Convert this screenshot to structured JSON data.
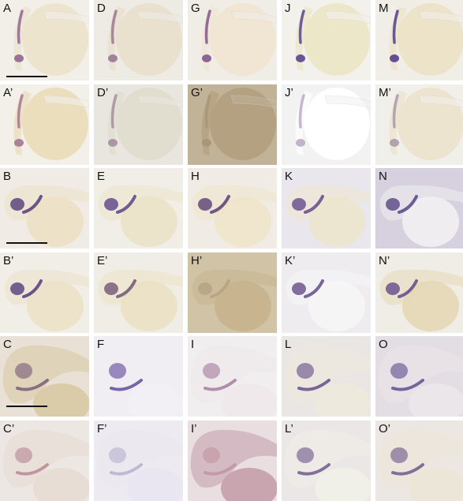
{
  "figure": {
    "panels": [
      {
        "label": "A",
        "bg": "#f2efe9",
        "yolk": "#ece3cc",
        "stain": "#8a5d8e",
        "scale_bar": true
      },
      {
        "label": "D",
        "bg": "#eeebe5",
        "yolk": "#e8e0cc",
        "stain": "#96708f"
      },
      {
        "label": "G",
        "bg": "#f0ece6",
        "yolk": "#efe6d2",
        "stain": "#7c4d86"
      },
      {
        "label": "J",
        "bg": "#f3f1ec",
        "yolk": "#ece6c8",
        "stain": "#4f3a8d"
      },
      {
        "label": "M",
        "bg": "#f1eee8",
        "yolk": "#ebe2c6",
        "stain": "#4c3288"
      },
      {
        "label": "A’",
        "bg": "#f3f0ea",
        "yolk": "#eadcb9",
        "stain": "#a06f8e"
      },
      {
        "label": "D’",
        "bg": "#e8e6df",
        "yolk": "#e0dccd",
        "stain": "#a1899c"
      },
      {
        "label": "G’",
        "bg": "#c1b398",
        "yolk": "#b3a07f",
        "stain": "#a79376"
      },
      {
        "label": "J’",
        "bg": "#f2f2f2",
        "yolk": "#ffffff",
        "stain": "#b8a6c2"
      },
      {
        "label": "M’",
        "bg": "#f1efea",
        "yolk": "#ebe3cc",
        "stain": "#a794a8"
      },
      {
        "label": "B",
        "bg": "#f0ece5",
        "yolk": "#ece2c6",
        "stain": "#4a2f74",
        "scale_bar": true
      },
      {
        "label": "E",
        "bg": "#f1eee8",
        "yolk": "#ebe3c8",
        "stain": "#513784"
      },
      {
        "label": "H",
        "bg": "#f0ece5",
        "yolk": "#efe5cb",
        "stain": "#50336f"
      },
      {
        "label": "K",
        "bg": "#eae6ed",
        "yolk": "#ece6cf",
        "stain": "#5e3f86"
      },
      {
        "label": "N",
        "bg": "#d7d0de",
        "yolk": "#f1eef1",
        "stain": "#4e3a7e"
      },
      {
        "label": "B’",
        "bg": "#f1eee8",
        "yolk": "#ebe2c8",
        "stain": "#4b2f77"
      },
      {
        "label": "E’",
        "bg": "#f0ede6",
        "yolk": "#ebe1c5",
        "stain": "#6a4b6f"
      },
      {
        "label": "H’",
        "bg": "#d1c3a6",
        "yolk": "#c7b48e",
        "stain": "#b3a182"
      },
      {
        "label": "K’",
        "bg": "#eeecef",
        "yolk": "#f6f6f6",
        "stain": "#5b4182"
      },
      {
        "label": "N’",
        "bg": "#f0ede7",
        "yolk": "#e6d9b8",
        "stain": "#593f84"
      },
      {
        "label": "C",
        "bg": "#e9e1d6",
        "yolk": "#d9caa6",
        "stain": "#6e4d70",
        "scale_bar": true
      },
      {
        "label": "F",
        "bg": "#f0eef3",
        "yolk": "#f1eff3",
        "stain": "#4e3590"
      },
      {
        "label": "I",
        "bg": "#f1eef0",
        "yolk": "#efe8ea",
        "stain": "#9c6f95"
      },
      {
        "label": "L",
        "bg": "#e9e6e4",
        "yolk": "#eee9dc",
        "stain": "#533b7e"
      },
      {
        "label": "O",
        "bg": "#e3dde4",
        "yolk": "#ebe6e9",
        "stain": "#4f3a83"
      },
      {
        "label": "C’",
        "bg": "#ede7e3",
        "yolk": "#e7dcd4",
        "stain": "#b17c8f"
      },
      {
        "label": "F’",
        "bg": "#edebf1",
        "yolk": "#e9e6f0",
        "stain": "#b3a9c9"
      },
      {
        "label": "I’",
        "bg": "#e9dee0",
        "yolk": "#c7a1ad",
        "stain": "#bf8f9f"
      },
      {
        "label": "L’",
        "bg": "#ebe7e7",
        "yolk": "#f0efe8",
        "stain": "#5e4583"
      },
      {
        "label": "O’",
        "bg": "#ece7e2",
        "yolk": "#ece6d8",
        "stain": "#5f4682"
      }
    ]
  }
}
